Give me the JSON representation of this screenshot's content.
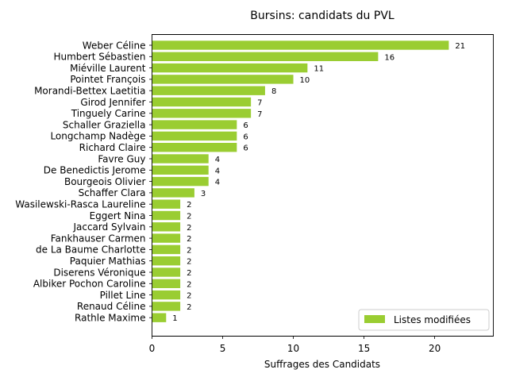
{
  "chart_data": {
    "type": "bar",
    "orientation": "horizontal",
    "title": "Bursins: candidats du PVL",
    "xlabel": "Suffrages des Candidats",
    "ylabel": "",
    "xlim": [
      0,
      24.15
    ],
    "xticks": [
      0,
      5,
      10,
      15,
      20
    ],
    "grid": false,
    "legend_position": "lower right",
    "bar_color": "#9acd32",
    "series": [
      {
        "name": "Listes modifiées",
        "values": [
          21,
          16,
          11,
          10,
          8,
          7,
          7,
          6,
          6,
          6,
          4,
          4,
          4,
          3,
          2,
          2,
          2,
          2,
          2,
          2,
          2,
          2,
          2,
          2,
          1
        ]
      }
    ],
    "categories": [
      "Weber Céline",
      "Humbert Sébastien",
      "Miéville Laurent",
      "Pointet François",
      "Morandi-Bettex Laetitia",
      "Girod Jennifer",
      "Tinguely Carine",
      "Schaller Graziella",
      "Longchamp Nadège",
      "Richard Claire",
      "Favre Guy",
      "De Benedictis Jerome",
      "Bourgeois Olivier",
      "Schaffer Clara",
      "Wasilewski-Rasca Laureline",
      "Eggert Nina",
      "Jaccard Sylvain",
      "Fankhauser Carmen",
      "de La Baume Charlotte",
      "Paquier Mathias",
      "Diserens Véronique",
      "Albiker Pochon Caroline",
      "Pillet Line",
      "Renaud Céline",
      "Rathle Maxime"
    ]
  }
}
